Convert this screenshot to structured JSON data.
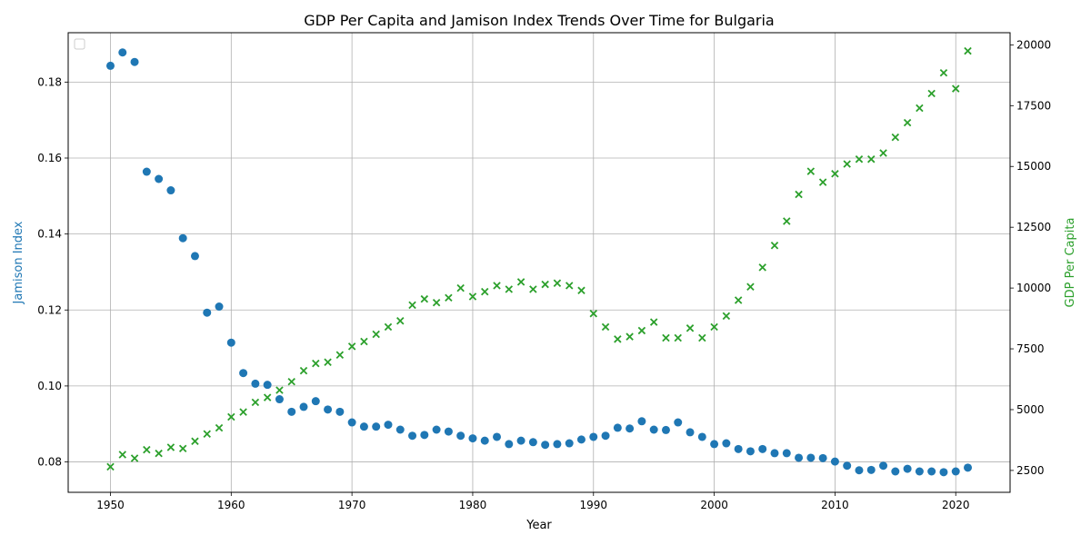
{
  "chart_data": {
    "type": "scatter",
    "title": "GDP Per Capita and Jamison Index Trends Over Time for Bulgaria",
    "xlabel": "Year",
    "ylabel_left": "Jamison Index",
    "ylabel_right": "GDP Per Capita",
    "xlim": [
      1946.5,
      2024.5
    ],
    "ylim_left": [
      0.072,
      0.193
    ],
    "ylim_right": [
      1600,
      20500
    ],
    "x_ticks": [
      1950,
      1960,
      1970,
      1980,
      1990,
      2000,
      2010,
      2020
    ],
    "y_ticks_left": [
      0.08,
      0.1,
      0.12,
      0.14,
      0.16,
      0.18
    ],
    "y_ticks_right": [
      2500,
      5000,
      7500,
      10000,
      12500,
      15000,
      17500,
      20000
    ],
    "grid": true,
    "legend": "top-left, empty",
    "colors": {
      "jamison": "#1f77b4",
      "gdp": "#2ca02c"
    },
    "series": [
      {
        "axis": "left",
        "marker": "circle",
        "x": [
          1950,
          1951,
          1952,
          1953,
          1954,
          1955,
          1956,
          1957,
          1958,
          1959,
          1960,
          1961,
          1962,
          1963,
          1964,
          1965,
          1966,
          1967,
          1968,
          1969,
          1970,
          1971,
          1972,
          1973,
          1974,
          1975,
          1976,
          1977,
          1978,
          1979,
          1980,
          1981,
          1982,
          1983,
          1984,
          1985,
          1986,
          1987,
          1988,
          1989,
          1990,
          1991,
          1992,
          1993,
          1994,
          1995,
          1996,
          1997,
          1998,
          1999,
          2000,
          2001,
          2002,
          2003,
          2004,
          2005,
          2006,
          2007,
          2008,
          2009,
          2010,
          2011,
          2012,
          2013,
          2014,
          2015,
          2016,
          2017,
          2018,
          2019,
          2020,
          2021
        ],
        "y": [
          0.1843,
          0.1878,
          0.1853,
          0.1564,
          0.1545,
          0.1515,
          0.1389,
          0.1342,
          0.1193,
          0.1209,
          0.1114,
          0.1034,
          0.1006,
          0.1003,
          0.0965,
          0.0932,
          0.0945,
          0.096,
          0.0938,
          0.0932,
          0.0904,
          0.0893,
          0.0893,
          0.0898,
          0.0885,
          0.0869,
          0.0871,
          0.0885,
          0.088,
          0.0869,
          0.0862,
          0.0856,
          0.0866,
          0.0847,
          0.0856,
          0.0852,
          0.0845,
          0.0847,
          0.0849,
          0.0859,
          0.0866,
          0.0869,
          0.089,
          0.0888,
          0.0907,
          0.0885,
          0.0884,
          0.0904,
          0.0878,
          0.0866,
          0.0847,
          0.0849,
          0.0834,
          0.0828,
          0.0834,
          0.0823,
          0.0823,
          0.0811,
          0.0811,
          0.081,
          0.0801,
          0.079,
          0.0778,
          0.0779,
          0.079,
          0.0775,
          0.0782,
          0.0775,
          0.0775,
          0.0773,
          0.0775,
          0.0785
        ]
      },
      {
        "axis": "right",
        "marker": "x",
        "x": [
          1950,
          1951,
          1952,
          1953,
          1954,
          1955,
          1956,
          1957,
          1958,
          1959,
          1960,
          1961,
          1962,
          1963,
          1964,
          1965,
          1966,
          1967,
          1968,
          1969,
          1970,
          1971,
          1972,
          1973,
          1974,
          1975,
          1976,
          1977,
          1978,
          1979,
          1980,
          1981,
          1982,
          1983,
          1984,
          1985,
          1986,
          1987,
          1988,
          1989,
          1990,
          1991,
          1992,
          1993,
          1994,
          1995,
          1996,
          1997,
          1998,
          1999,
          2000,
          2001,
          2002,
          2003,
          2004,
          2005,
          2006,
          2007,
          2008,
          2009,
          2010,
          2011,
          2012,
          2013,
          2014,
          2015,
          2016,
          2017,
          2018,
          2019,
          2020,
          2021
        ],
        "y": [
          2650,
          3150,
          3000,
          3350,
          3200,
          3450,
          3400,
          3700,
          4000,
          4250,
          4700,
          4900,
          5300,
          5500,
          5800,
          6150,
          6600,
          6900,
          6950,
          7250,
          7600,
          7800,
          8100,
          8400,
          8650,
          9300,
          9550,
          9400,
          9600,
          10000,
          9650,
          9850,
          10100,
          9950,
          10250,
          9950,
          10150,
          10200,
          10100,
          9900,
          8950,
          8400,
          7900,
          8000,
          8250,
          8600,
          7950,
          7950,
          8350,
          7950,
          8400,
          8850,
          9500,
          10050,
          10850,
          11750,
          12750,
          13850,
          14800,
          14350,
          14700,
          15100,
          15300,
          15300,
          15550,
          16200,
          16800,
          17400,
          18000,
          18850,
          18200,
          19750
        ]
      }
    ]
  }
}
